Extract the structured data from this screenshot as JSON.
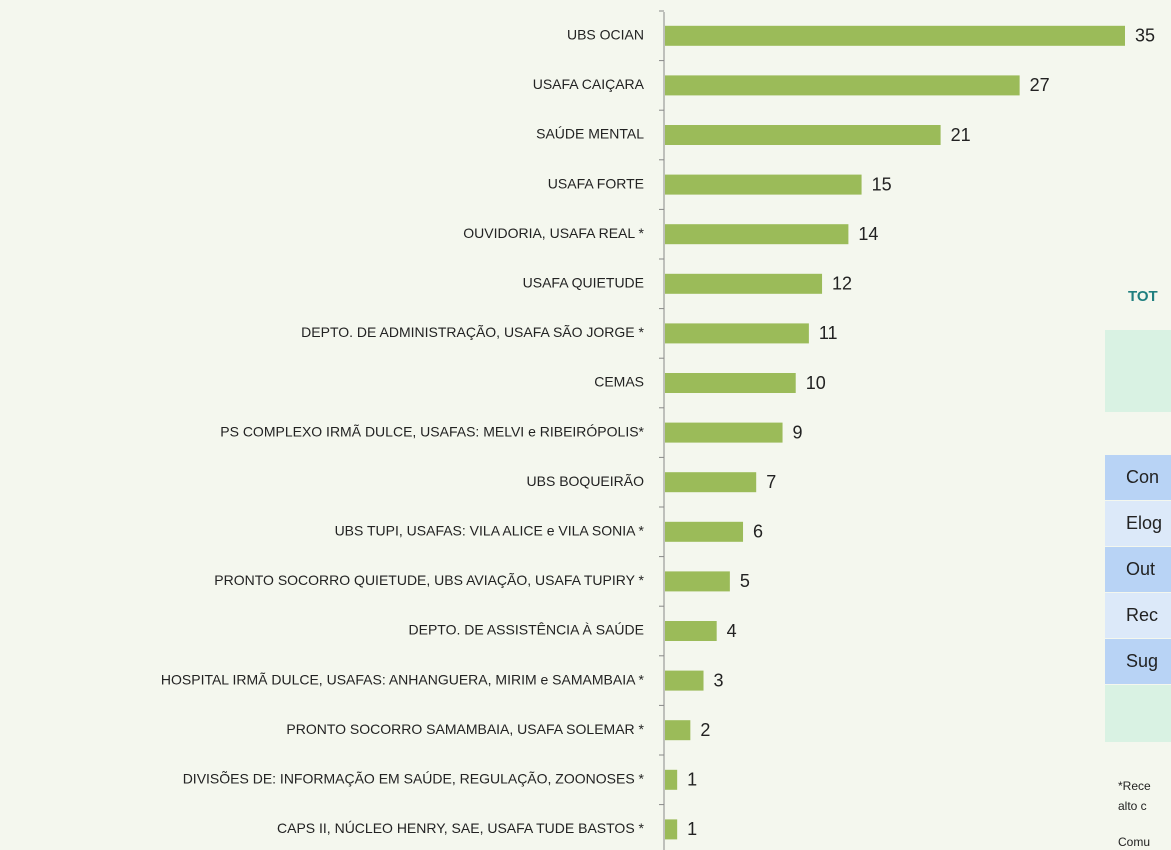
{
  "chart_data": {
    "type": "bar",
    "orientation": "horizontal",
    "color": "#9bbb59",
    "categories": [
      "UBS OCIAN",
      "USAFA CAIÇARA",
      "SAÚDE MENTAL",
      "USAFA FORTE",
      "OUVIDORIA, USAFA REAL *",
      "USAFA QUIETUDE",
      "DEPTO. DE ADMINISTRAÇÃO, USAFA SÃO JORGE *",
      "CEMAS",
      "PS COMPLEXO IRMÃ DULCE, USAFAS: MELVI e RIBEIRÓPOLIS*",
      "UBS BOQUEIRÃO",
      "UBS TUPI, USAFAS: VILA ALICE e VILA SONIA *",
      "PRONTO SOCORRO QUIETUDE, UBS AVIAÇÃO, USAFA TUPIRY *",
      "DEPTO. DE ASSISTÊNCIA À SAÚDE",
      "HOSPITAL IRMÃ DULCE, USAFAS: ANHANGUERA, MIRIM e SAMAMBAIA *",
      "PRONTO SOCORRO SAMAMBAIA, USAFA SOLEMAR *",
      "DIVISÕES DE: INFORMAÇÃO EM SAÚDE, REGULAÇÃO, ZOONOSES *",
      "CAPS II, NÚCLEO HENRY, SAE, USAFA TUDE BASTOS *"
    ],
    "values": [
      35,
      27,
      21,
      15,
      14,
      12,
      11,
      10,
      9,
      7,
      6,
      5,
      4,
      3,
      2,
      1,
      1
    ]
  },
  "table": {
    "title": "TOT",
    "rows": [
      "Con",
      "Elog",
      "Out",
      "Rec",
      "Sug"
    ]
  },
  "note": [
    "*Rece",
    "alto c",
    "Comu"
  ]
}
